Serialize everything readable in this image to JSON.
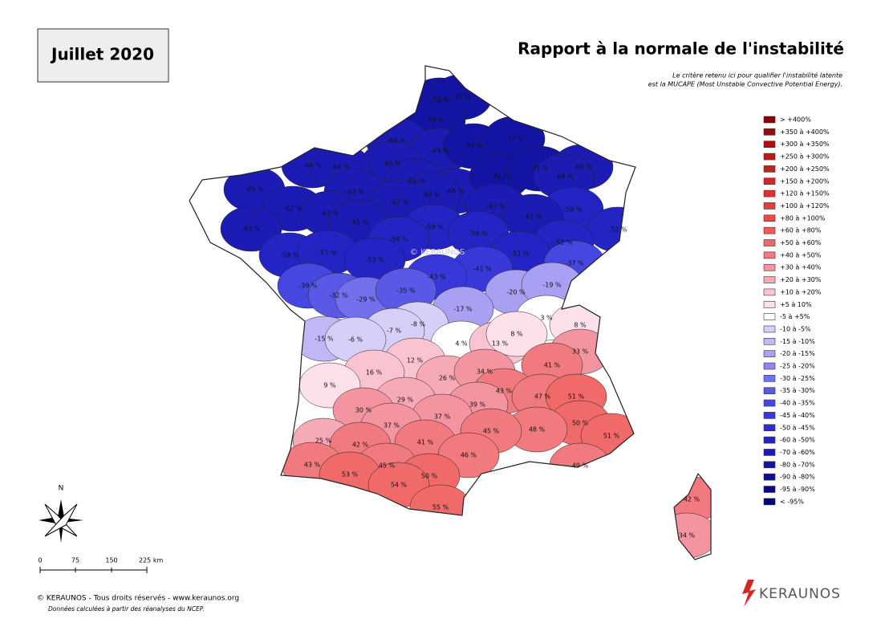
{
  "header": {
    "period": "Juillet 2020",
    "title": "Rapport à la normale de l'instabilité",
    "note": [
      "Le critère retenu ici pour qualifier l'instabilité latente",
      "est la MUCAPE (Most Unstable Convective Potential Energy)."
    ]
  },
  "legend": [
    {
      "label": "> +400%",
      "color": "#8b0000"
    },
    {
      "label": "+350 à +400%",
      "color": "#9b0a0a"
    },
    {
      "label": "+300 à +350%",
      "color": "#ab1212"
    },
    {
      "label": "+250 à +300%",
      "color": "#bb1a1a"
    },
    {
      "label": "+200 à +250%",
      "color": "#c82020"
    },
    {
      "label": "+150 à +200%",
      "color": "#d42828"
    },
    {
      "label": "+120 à +150%",
      "color": "#e03030"
    },
    {
      "label": "+100 à +120%",
      "color": "#e83c3c"
    },
    {
      "label": "+80 à +100%",
      "color": "#f04848"
    },
    {
      "label": "+60 à +80%",
      "color": "#f05a5a"
    },
    {
      "label": "+50 à +60%",
      "color": "#f06a6a"
    },
    {
      "label": "+40 à +50%",
      "color": "#f07a7e"
    },
    {
      "label": "+30 à +40%",
      "color": "#f394a0"
    },
    {
      "label": "+20 à +30%",
      "color": "#f6aab6"
    },
    {
      "label": "+10 à +20%",
      "color": "#f9c4d0"
    },
    {
      "label": "+5 à 10%",
      "color": "#fce0ea"
    },
    {
      "label": "-5 à +5%",
      "color": "#ffffff"
    },
    {
      "label": "-10 à -5%",
      "color": "#d6d0f8"
    },
    {
      "label": "-15 à -10%",
      "color": "#c0b8f6"
    },
    {
      "label": "-20 à -15%",
      "color": "#a8a0f2"
    },
    {
      "label": "-25 à -20%",
      "color": "#8e88f0"
    },
    {
      "label": "-30 à -25%",
      "color": "#7270ec"
    },
    {
      "label": "-35 à -30%",
      "color": "#5a58e6"
    },
    {
      "label": "-40 à -35%",
      "color": "#4646e0"
    },
    {
      "label": "-45 à -40%",
      "color": "#3838d8"
    },
    {
      "label": "-50 à -45%",
      "color": "#2c2cd0"
    },
    {
      "label": "-60 à -50%",
      "color": "#2424c4"
    },
    {
      "label": "-70 à -60%",
      "color": "#1c1cb4"
    },
    {
      "label": "-80 à -70%",
      "color": "#1414a4"
    },
    {
      "label": "-90 à -80%",
      "color": "#0e0e94"
    },
    {
      "label": "-95 à -90%",
      "color": "#080884"
    },
    {
      "label": "< -95%",
      "color": "#04047a"
    }
  ],
  "departments": [
    {
      "label": "-70 %",
      "value": -70,
      "color": "#1414a4"
    },
    {
      "label": "-74 %",
      "value": -74,
      "color": "#1414a4"
    },
    {
      "label": "-72 %",
      "value": -72,
      "color": "#1414a4"
    },
    {
      "label": "-68 %",
      "value": -68,
      "color": "#1c1cb4"
    },
    {
      "label": "-69 %",
      "value": -69,
      "color": "#1c1cb4"
    },
    {
      "label": "-73 %",
      "value": -73,
      "color": "#1414a4"
    },
    {
      "label": "-77 %",
      "value": -77,
      "color": "#1414a4"
    },
    {
      "label": "-65 %",
      "value": -65,
      "color": "#1c1cb4"
    },
    {
      "label": "-64 %",
      "value": -64,
      "color": "#1c1cb4"
    },
    {
      "label": "-64 %",
      "value": -64,
      "color": "#1c1cb4"
    },
    {
      "label": "-65 %",
      "value": -65,
      "color": "#1c1cb4"
    },
    {
      "label": "-66 %",
      "value": -66,
      "color": "#1c1cb4"
    },
    {
      "label": "-63 %",
      "value": -63,
      "color": "#1c1cb4"
    },
    {
      "label": "-70 %",
      "value": -70,
      "color": "#1414a4"
    },
    {
      "label": "-71 %",
      "value": -71,
      "color": "#1414a4"
    },
    {
      "label": "-69 %",
      "value": -69,
      "color": "#1c1cb4"
    },
    {
      "label": "-68 %",
      "value": -68,
      "color": "#1c1cb4"
    },
    {
      "label": "-65 %",
      "value": -65,
      "color": "#1c1cb4"
    },
    {
      "label": "-63 %",
      "value": -63,
      "color": "#1c1cb4"
    },
    {
      "label": "-62 %",
      "value": -62,
      "color": "#1c1cb4"
    },
    {
      "label": "-63 %",
      "value": -63,
      "color": "#1c1cb4"
    },
    {
      "label": "-59 %",
      "value": -59,
      "color": "#2424c4"
    },
    {
      "label": "-62 %",
      "value": -62,
      "color": "#1c1cb4"
    },
    {
      "label": "-62 %",
      "value": -62,
      "color": "#1c1cb4"
    },
    {
      "label": "-61 %",
      "value": -61,
      "color": "#1c1cb4"
    },
    {
      "label": "-61 %",
      "value": -61,
      "color": "#1c1cb4"
    },
    {
      "label": "-59 %",
      "value": -59,
      "color": "#2424c4"
    },
    {
      "label": "-58 %",
      "value": -58,
      "color": "#2424c4"
    },
    {
      "label": "-52 %",
      "value": -52,
      "color": "#2424c4"
    },
    {
      "label": "-63 %",
      "value": -63,
      "color": "#1c1cb4"
    },
    {
      "label": "-58 %",
      "value": -58,
      "color": "#2424c4"
    },
    {
      "label": "-52 %",
      "value": -52,
      "color": "#2424c4"
    },
    {
      "label": "-58 %",
      "value": -58,
      "color": "#2424c4"
    },
    {
      "label": "-57 %",
      "value": -57,
      "color": "#2424c4"
    },
    {
      "label": "-53 %",
      "value": -53,
      "color": "#2424c4"
    },
    {
      "label": "-51 %",
      "value": -51,
      "color": "#2424c4"
    },
    {
      "label": "-37 %",
      "value": -37,
      "color": "#4646e0"
    },
    {
      "label": "-41 %",
      "value": -41,
      "color": "#3838d8"
    },
    {
      "label": "-43 %",
      "value": -43,
      "color": "#3838d8"
    },
    {
      "label": "-39 %",
      "value": -39,
      "color": "#4646e0"
    },
    {
      "label": "-32 %",
      "value": -32,
      "color": "#5a58e6"
    },
    {
      "label": "-29 %",
      "value": -29,
      "color": "#7270ec"
    },
    {
      "label": "-35 %",
      "value": -35,
      "color": "#5a58e6"
    },
    {
      "label": "-20 %",
      "value": -20,
      "color": "#a8a0f2"
    },
    {
      "label": "-19 %",
      "value": -19,
      "color": "#a8a0f2"
    },
    {
      "label": "-17 %",
      "value": -17,
      "color": "#a8a0f2"
    },
    {
      "label": "3 %",
      "value": 3,
      "color": "#ffffff"
    },
    {
      "label": "8 %",
      "value": 8,
      "color": "#fce0ea"
    },
    {
      "label": "-8 %",
      "value": -8,
      "color": "#d6d0f8"
    },
    {
      "label": "-7 %",
      "value": -7,
      "color": "#d6d0f8"
    },
    {
      "label": "-15 %",
      "value": -15,
      "color": "#c0b8f6"
    },
    {
      "label": "-6 %",
      "value": -6,
      "color": "#d6d0f8"
    },
    {
      "label": "4 %",
      "value": 4,
      "color": "#ffffff"
    },
    {
      "label": "13 %",
      "value": 13,
      "color": "#f9c4d0"
    },
    {
      "label": "8 %",
      "value": 8,
      "color": "#fce0ea"
    },
    {
      "label": "33 %",
      "value": 33,
      "color": "#f394a0"
    },
    {
      "label": "41 %",
      "value": 41,
      "color": "#f07a7e"
    },
    {
      "label": "12 %",
      "value": 12,
      "color": "#f9c4d0"
    },
    {
      "label": "16 %",
      "value": 16,
      "color": "#f9c4d0"
    },
    {
      "label": "26 %",
      "value": 26,
      "color": "#f6aab6"
    },
    {
      "label": "34 %",
      "value": 34,
      "color": "#f394a0"
    },
    {
      "label": "9 %",
      "value": 9,
      "color": "#fce0ea"
    },
    {
      "label": "43 %",
      "value": 43,
      "color": "#f07a7e"
    },
    {
      "label": "47 %",
      "value": 47,
      "color": "#f07a7e"
    },
    {
      "label": "51 %",
      "value": 51,
      "color": "#f06a6a"
    },
    {
      "label": "29 %",
      "value": 29,
      "color": "#f6aab6"
    },
    {
      "label": "39 %",
      "value": 39,
      "color": "#f394a0"
    },
    {
      "label": "30 %",
      "value": 30,
      "color": "#f394a0"
    },
    {
      "label": "37 %",
      "value": 37,
      "color": "#f394a0"
    },
    {
      "label": "50 %",
      "value": 50,
      "color": "#f06a6a"
    },
    {
      "label": "37 %",
      "value": 37,
      "color": "#f394a0"
    },
    {
      "label": "48 %",
      "value": 48,
      "color": "#f07a7e"
    },
    {
      "label": "45 %",
      "value": 45,
      "color": "#f07a7e"
    },
    {
      "label": "51 %",
      "value": 51,
      "color": "#f06a6a"
    },
    {
      "label": "25 %",
      "value": 25,
      "color": "#f6aab6"
    },
    {
      "label": "42 %",
      "value": 42,
      "color": "#f07a7e"
    },
    {
      "label": "41 %",
      "value": 41,
      "color": "#f07a7e"
    },
    {
      "label": "46 %",
      "value": 46,
      "color": "#f07a7e"
    },
    {
      "label": "49 %",
      "value": 49,
      "color": "#f07a7e"
    },
    {
      "label": "43 %",
      "value": 43,
      "color": "#f07a7e"
    },
    {
      "label": "45 %",
      "value": 45,
      "color": "#f07a7e"
    },
    {
      "label": "53 %",
      "value": 53,
      "color": "#f06a6a"
    },
    {
      "label": "50 %",
      "value": 50,
      "color": "#f06a6a"
    },
    {
      "label": "54 %",
      "value": 54,
      "color": "#f06a6a"
    },
    {
      "label": "55 %",
      "value": 55,
      "color": "#f06a6a"
    },
    {
      "label": "42 %",
      "value": 42,
      "color": "#f07a7e"
    },
    {
      "label": "34 %",
      "value": 34,
      "color": "#f394a0"
    }
  ],
  "compass": "N",
  "scale": [
    "0",
    "75",
    "150",
    "225 km"
  ],
  "watermark": "© KERAUNOS",
  "footer": {
    "copyright": "© KERAUNOS - Tous droits réservés - www.keraunos.org",
    "source": "Données calculées à partir des réanalyses du NCEP."
  },
  "logo": "KERAUNOS"
}
